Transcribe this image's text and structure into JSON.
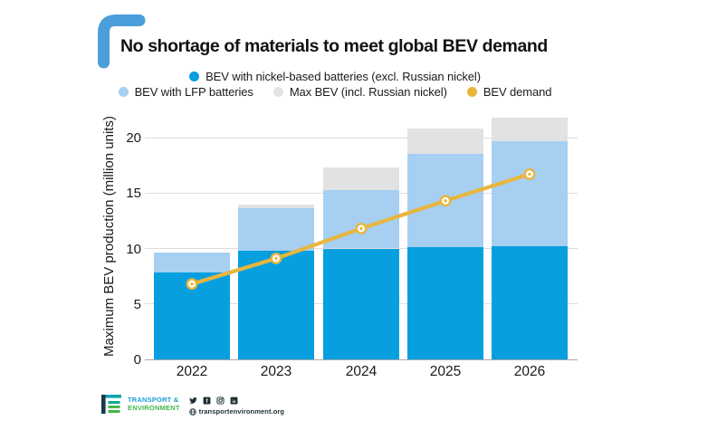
{
  "title": "No shortage of materials to meet global BEV demand",
  "legend": {
    "rows": [
      [
        {
          "label": "BEV with nickel-based batteries (excl. Russian nickel)",
          "color": "#089fdf"
        }
      ],
      [
        {
          "label": "BEV with LFP batteries",
          "color": "#a6cff2"
        },
        {
          "label": "Max BEV (incl. Russian nickel)",
          "color": "#e2e2e2"
        },
        {
          "label": "BEV demand",
          "color": "#e8b63e"
        }
      ]
    ]
  },
  "chart_data": {
    "type": "bar",
    "subtype": "stacked-bar-with-line",
    "title": "No shortage of materials to meet global BEV demand",
    "categories": [
      "2022",
      "2023",
      "2024",
      "2025",
      "2026"
    ],
    "xlabel": "",
    "ylabel": "Maximum BEV production (million units)",
    "yticks": [
      0,
      5,
      10,
      15,
      20
    ],
    "ylim": [
      0,
      22.2
    ],
    "grid": true,
    "legend_position": "top",
    "series": [
      {
        "name": "BEV with nickel-based batteries (excl. Russian nickel)",
        "render": "bar-segment",
        "color": "#089fdf",
        "values": [
          7.8,
          9.8,
          10.0,
          10.1,
          10.2
        ]
      },
      {
        "name": "BEV with LFP batteries",
        "render": "bar-segment",
        "color": "#a6cff2",
        "values": [
          1.8,
          3.8,
          5.3,
          8.4,
          9.5
        ]
      },
      {
        "name": "Max BEV (incl. Russian nickel)",
        "render": "bar-segment",
        "color": "#e2e2e2",
        "values": [
          0,
          0.4,
          2.0,
          2.3,
          2.1
        ]
      },
      {
        "name": "BEV demand",
        "render": "line",
        "color": "#e8b63e",
        "values": [
          6.8,
          9.1,
          11.8,
          14.3,
          16.7
        ]
      }
    ],
    "stacked_totals": [
      9.6,
      14.0,
      17.3,
      20.8,
      21.8
    ]
  },
  "footer": {
    "logo_line1": "TRANSPORT &",
    "logo_line2": "ENVIRONMENT",
    "social": [
      {
        "name": "twitter",
        "glyph": ""
      },
      {
        "name": "facebook",
        "glyph": "f"
      },
      {
        "name": "instagram",
        "glyph": ""
      },
      {
        "name": "linkedin",
        "glyph": "in"
      }
    ],
    "website": "transportenvironment.org"
  },
  "colors": {
    "accent_bracket": "#4a9fdb",
    "nickel_bar": "#089fdf",
    "lfp_bar": "#a6cff2",
    "max_bar": "#e2e2e2",
    "demand_line": "#e8b63e",
    "gridline": "#dcdcdc",
    "baseline": "#a9a9a9",
    "logo_blue": "#1e9cd7",
    "logo_green": "#44b649",
    "icon_dark": "#1d2d33"
  }
}
